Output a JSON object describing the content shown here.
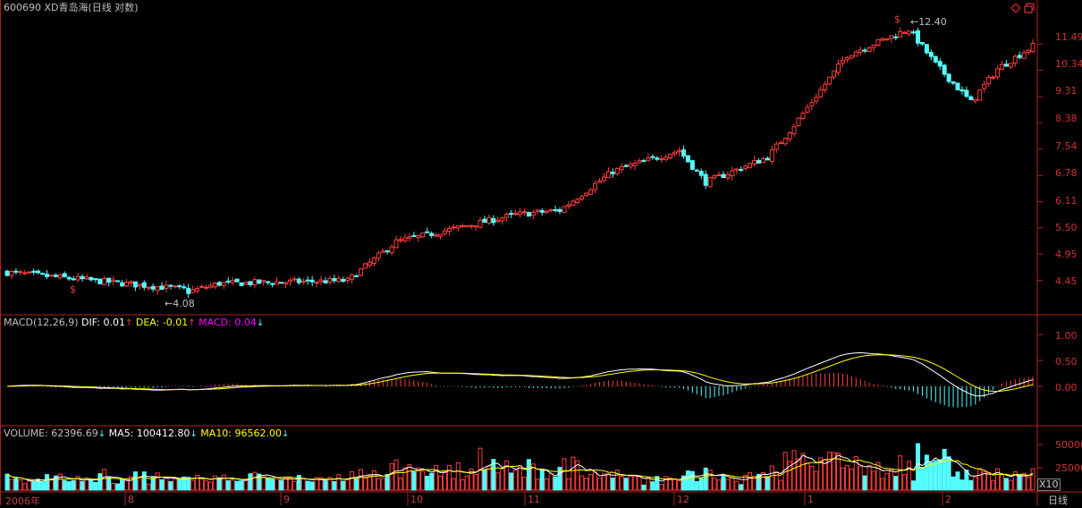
{
  "header": {
    "title": "600690 XD青岛海(日线 对数)"
  },
  "window_controls": {
    "diamond_icon": "diamond-icon",
    "restore_icon": "restore-window-icon"
  },
  "price_axis": {
    "ticks": [
      "11.49",
      "10.34",
      "9.31",
      "8.38",
      "7.54",
      "6.78",
      "6.11",
      "5.50",
      "4.95",
      "4.45"
    ]
  },
  "price_annotations": {
    "high_label": "12.40",
    "low_label": "4.08"
  },
  "macd": {
    "name": "MACD(12,26,9)",
    "dif_label": "DIF:",
    "dif_value": "0.01",
    "dea_label": "DEA:",
    "dea_value": "-0.01",
    "macd_label": "MACD:",
    "macd_value": "0.04",
    "axis_ticks": [
      "1.00",
      "0.50",
      "0.00"
    ]
  },
  "volume": {
    "label": "VOLUME:",
    "value": "62396.69",
    "ma5_label": "MA5:",
    "ma5_value": "100412.80",
    "ma10_label": "MA10:",
    "ma10_value": "96562.00",
    "axis_ticks": [
      "50000",
      "25000"
    ],
    "scale_label": "X10"
  },
  "time_axis": {
    "labels": [
      "2006年",
      "8",
      "9",
      "10",
      "11",
      "12",
      "1",
      "2"
    ],
    "period_button": "日线"
  },
  "colors": {
    "up": "#ff3c3c",
    "down": "#54fcfc",
    "axis": "#b02020",
    "dif": "#ffffff",
    "dea": "#ffff00",
    "macd_text": "#ff00ff"
  },
  "chart_data": {
    "type": "candlestick",
    "scale": "log",
    "price_range": [
      4.08,
      12.4
    ],
    "trend_points": [
      [
        0,
        4.6
      ],
      [
        40,
        4.3
      ],
      [
        33,
        4.1
      ],
      [
        48,
        4.4
      ],
      [
        77,
        4.45
      ],
      [
        88,
        5.2
      ],
      [
        115,
        5.8
      ],
      [
        125,
        5.9
      ],
      [
        137,
        6.9
      ],
      [
        152,
        7.5
      ],
      [
        158,
        6.6
      ],
      [
        172,
        7.3
      ],
      [
        178,
        8.3
      ],
      [
        190,
        11.0
      ],
      [
        204,
        12.2
      ],
      [
        210,
        10.6
      ],
      [
        218,
        9.1
      ],
      [
        224,
        10.4
      ],
      [
        232,
        11.4
      ]
    ]
  }
}
